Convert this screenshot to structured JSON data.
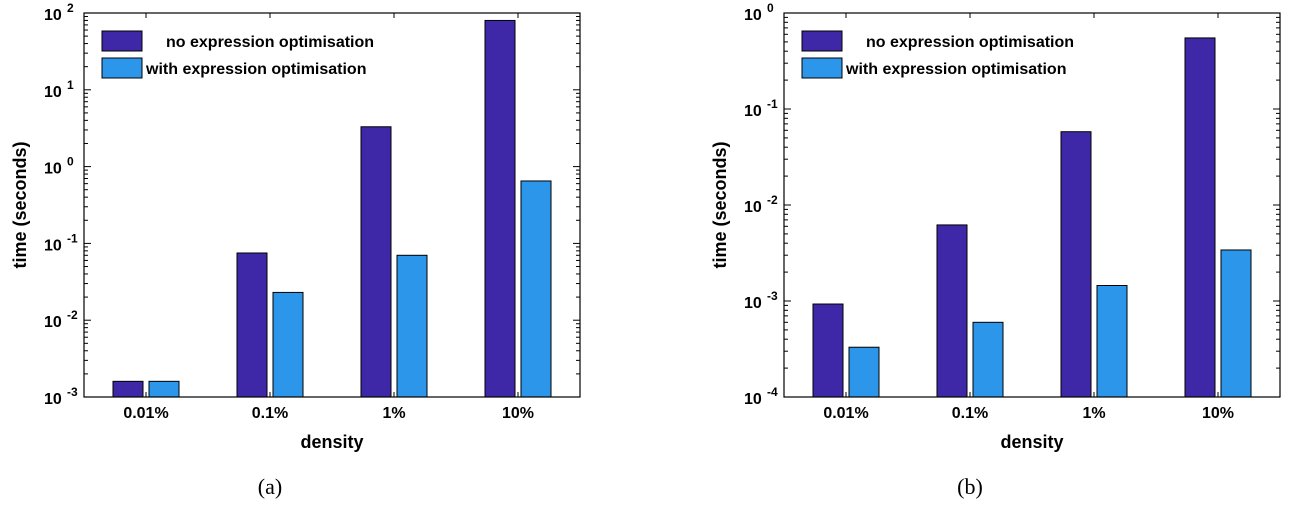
{
  "colors": {
    "no_opt": "#3f28a8",
    "with_opt": "#2c97ea"
  },
  "chart_data": [
    {
      "type": "bar",
      "log_scale": true,
      "caption": "(a)",
      "xlabel": "density",
      "ylabel": "time (seconds)",
      "categories": [
        "0.01%",
        "0.1%",
        "1%",
        "10%"
      ],
      "ylim_exp": [
        -3,
        2
      ],
      "ytick_exps": [
        "-3",
        "-2",
        "-1",
        "0",
        "1",
        "2"
      ],
      "legend_position": "top-left",
      "grid": false,
      "series": [
        {
          "name": "no expression optimisation",
          "values": [
            0.0016,
            0.075,
            3.3,
            80
          ]
        },
        {
          "name": "with expression optimisation",
          "values": [
            0.0016,
            0.023,
            0.07,
            0.65
          ]
        }
      ]
    },
    {
      "type": "bar",
      "log_scale": true,
      "caption": "(b)",
      "xlabel": "density",
      "ylabel": "time (seconds)",
      "categories": [
        "0.01%",
        "0.1%",
        "1%",
        "10%"
      ],
      "ylim_exp": [
        -4,
        0
      ],
      "ytick_exps": [
        "-4",
        "-3",
        "-2",
        "-1",
        "0"
      ],
      "legend_position": "top-left",
      "grid": false,
      "series": [
        {
          "name": "no expression optimisation",
          "values": [
            0.00093,
            0.0062,
            0.058,
            0.55
          ]
        },
        {
          "name": "with expression optimisation",
          "values": [
            0.00033,
            0.0006,
            0.00145,
            0.0034
          ]
        }
      ]
    }
  ]
}
